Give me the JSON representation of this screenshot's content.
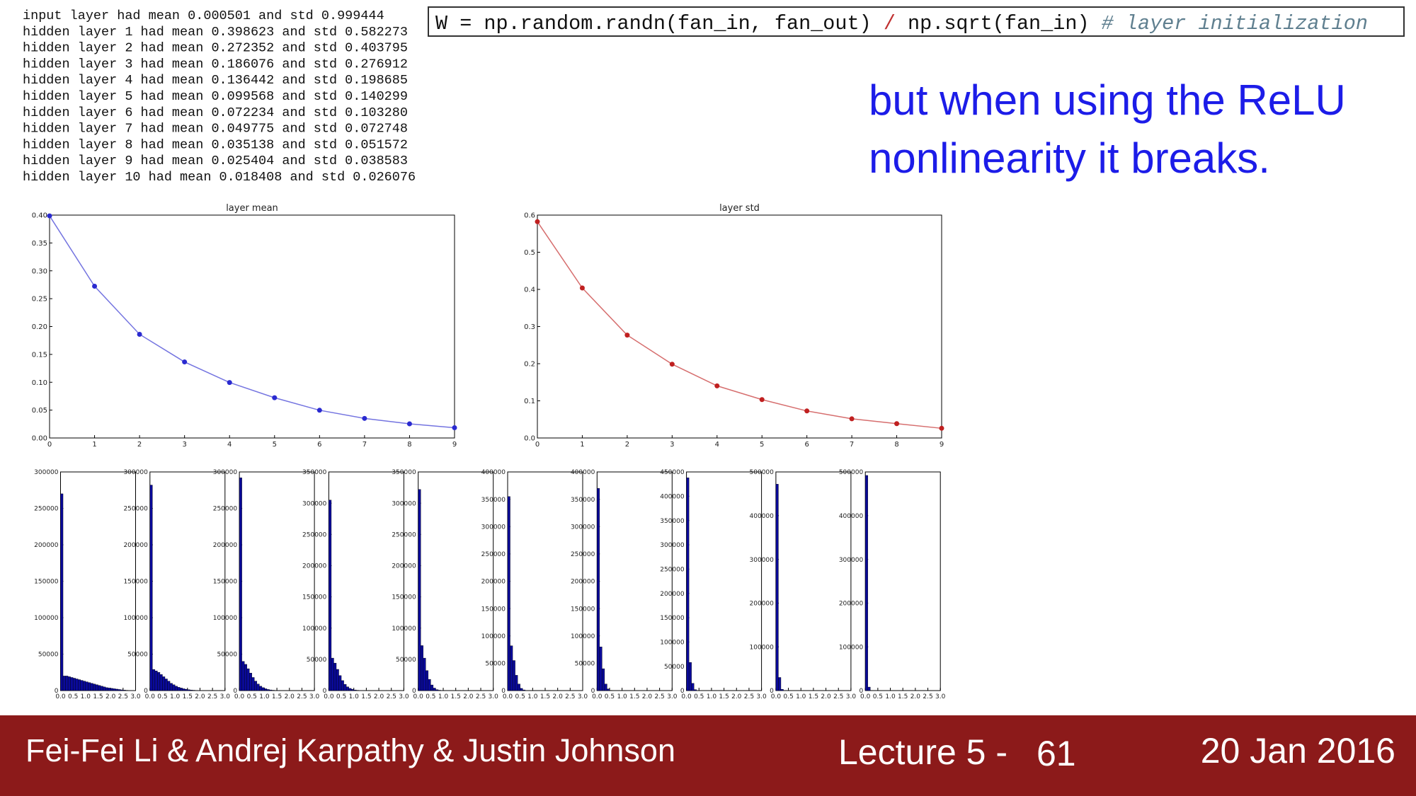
{
  "console": [
    "input layer had mean 0.000501 and std 0.999444",
    "hidden layer 1 had mean 0.398623 and std 0.582273",
    "hidden layer 2 had mean 0.272352 and std 0.403795",
    "hidden layer 3 had mean 0.186076 and std 0.276912",
    "hidden layer 4 had mean 0.136442 and std 0.198685",
    "hidden layer 5 had mean 0.099568 and std 0.140299",
    "hidden layer 6 had mean 0.072234 and std 0.103280",
    "hidden layer 7 had mean 0.049775 and std 0.072748",
    "hidden layer 8 had mean 0.035138 and std 0.051572",
    "hidden layer 9 had mean 0.025404 and std 0.038583",
    "hidden layer 10 had mean 0.018408 and std 0.026076"
  ],
  "code": [
    "W = np.random.randn(fan_in, fan_out) ",
    "/",
    " np.sqrt(fan_in) ",
    "# layer initialization"
  ],
  "caption": [
    "but when using the ReLU",
    "nonlinearity it breaks."
  ],
  "footer": {
    "authors": "Fei-Fei Li & Andrej Karpathy & Justin Johnson",
    "lecture": "Lecture 5 -",
    "page": "61",
    "date": "20 Jan 2016"
  },
  "chart_data": [
    {
      "type": "line",
      "title": "layer mean",
      "x": [
        0,
        1,
        2,
        3,
        4,
        5,
        6,
        7,
        8,
        9
      ],
      "series": [
        {
          "color": "#2a2ad0",
          "values": [
            0.398623,
            0.272352,
            0.186076,
            0.136442,
            0.099568,
            0.072234,
            0.049775,
            0.035138,
            0.025404,
            0.018408
          ]
        }
      ],
      "xlim": [
        0,
        9
      ],
      "xticks": [
        0,
        1,
        2,
        3,
        4,
        5,
        6,
        7,
        8,
        9
      ],
      "ylim": [
        0,
        0.4
      ],
      "yticks": [
        {
          "value": 0,
          "label": "0.00"
        },
        0.05,
        {
          "value": 0.1,
          "label": "0.10"
        },
        0.15,
        {
          "value": 0.2,
          "label": "0.20"
        },
        0.25,
        {
          "value": 0.3,
          "label": "0.30"
        },
        0.35,
        {
          "value": 0.4,
          "label": "0.40"
        }
      ]
    },
    {
      "type": "line",
      "title": "layer std",
      "x": [
        0,
        1,
        2,
        3,
        4,
        5,
        6,
        7,
        8,
        9
      ],
      "series": [
        {
          "color": "#c02020",
          "values": [
            0.582273,
            0.403795,
            0.276912,
            0.198685,
            0.140299,
            0.10328,
            0.072748,
            0.051572,
            0.038583,
            0.026076
          ]
        }
      ],
      "xlim": [
        0,
        9
      ],
      "xticks": [
        0,
        1,
        2,
        3,
        4,
        5,
        6,
        7,
        8,
        9
      ],
      "ylim": [
        0,
        0.6
      ],
      "yticks": [
        {
          "value": 0,
          "label": "0.0"
        },
        0.1,
        0.2,
        0.3,
        0.4,
        0.5,
        0.6
      ]
    },
    {
      "type": "histogram",
      "color": "#0a0a9a",
      "bins": [
        0,
        0.1,
        0.2,
        0.3,
        0.4,
        0.5,
        0.6,
        0.7,
        0.8,
        0.9,
        1,
        1.1,
        1.2,
        1.3,
        1.4,
        1.5,
        1.6,
        1.7,
        1.8,
        1.9,
        2,
        2.1,
        2.2,
        2.3,
        2.4,
        2.5,
        2.6,
        2.7,
        2.8,
        2.9,
        3
      ],
      "values": [
        270000,
        20000,
        20000,
        19000,
        18000,
        17000,
        16000,
        15000,
        14000,
        13000,
        12000,
        11000,
        10000,
        9000,
        8000,
        7000,
        6000,
        5000,
        4000,
        3500,
        3000,
        2500,
        2000,
        1500,
        1000,
        700,
        400,
        200,
        100,
        0
      ],
      "xlim": [
        0,
        3
      ],
      "xticks": [
        {
          "value": 0,
          "label": "0.0"
        },
        0.5,
        {
          "value": 1,
          "label": "1.0"
        },
        1.5,
        {
          "value": 2,
          "label": "2.0"
        },
        2.5,
        {
          "value": 3,
          "label": "3.0"
        }
      ],
      "ylim": [
        0,
        300000
      ],
      "yticks": [
        0,
        50000,
        100000,
        150000,
        200000,
        250000,
        300000
      ]
    },
    {
      "type": "histogram",
      "color": "#0a0a9a",
      "bins": [
        0,
        0.1,
        0.2,
        0.3,
        0.4,
        0.5,
        0.6,
        0.7,
        0.8,
        0.9,
        1,
        1.1,
        1.2,
        1.3,
        1.4,
        1.5,
        1.6,
        1.7,
        1.8,
        1.9,
        2,
        2.1,
        2.2,
        2.3,
        2.4,
        2.5,
        2.6,
        2.7,
        2.8,
        2.9,
        3
      ],
      "values": [
        282000,
        29000,
        27000,
        25000,
        22000,
        19000,
        16000,
        13000,
        10000,
        8000,
        6000,
        4500,
        3500,
        2500,
        1800,
        1200,
        800,
        500,
        300,
        150,
        80,
        0,
        0,
        0,
        0,
        0,
        0,
        0,
        0,
        0
      ],
      "xlim": [
        0,
        3
      ],
      "xticks": [
        {
          "value": 0,
          "label": "0.0"
        },
        0.5,
        {
          "value": 1,
          "label": "1.0"
        },
        1.5,
        {
          "value": 2,
          "label": "2.0"
        },
        2.5,
        {
          "value": 3,
          "label": "3.0"
        }
      ],
      "ylim": [
        0,
        300000
      ],
      "yticks": [
        0,
        50000,
        100000,
        150000,
        200000,
        250000,
        300000
      ]
    },
    {
      "type": "histogram",
      "color": "#0a0a9a",
      "bins": [
        0,
        0.1,
        0.2,
        0.3,
        0.4,
        0.5,
        0.6,
        0.7,
        0.8,
        0.9,
        1,
        1.1,
        1.2,
        1.3,
        1.4,
        1.5,
        1.6,
        1.7,
        1.8,
        1.9,
        2,
        2.1,
        2.2,
        2.3,
        2.4,
        2.5,
        2.6,
        2.7,
        2.8,
        2.9,
        3
      ],
      "values": [
        292000,
        40000,
        36000,
        30000,
        24000,
        18000,
        13000,
        9000,
        6000,
        4000,
        2500,
        1500,
        900,
        500,
        250,
        100,
        0,
        0,
        0,
        0,
        0,
        0,
        0,
        0,
        0,
        0,
        0,
        0,
        0,
        0
      ],
      "xlim": [
        0,
        3
      ],
      "xticks": [
        {
          "value": 0,
          "label": "0.0"
        },
        0.5,
        {
          "value": 1,
          "label": "1.0"
        },
        1.5,
        {
          "value": 2,
          "label": "2.0"
        },
        2.5,
        {
          "value": 3,
          "label": "3.0"
        }
      ],
      "ylim": [
        0,
        300000
      ],
      "yticks": [
        0,
        50000,
        100000,
        150000,
        200000,
        250000,
        300000
      ]
    },
    {
      "type": "histogram",
      "color": "#0a0a9a",
      "bins": [
        0,
        0.1,
        0.2,
        0.3,
        0.4,
        0.5,
        0.6,
        0.7,
        0.8,
        0.9,
        1,
        1.1,
        1.2,
        1.3,
        1.4,
        1.5,
        1.6,
        1.7,
        1.8,
        1.9,
        2,
        2.1,
        2.2,
        2.3,
        2.4,
        2.5,
        2.6,
        2.7,
        2.8,
        2.9,
        3
      ],
      "values": [
        305000,
        52000,
        44000,
        34000,
        24000,
        16000,
        10000,
        6000,
        3500,
        2000,
        1000,
        500,
        200,
        100,
        0,
        0,
        0,
        0,
        0,
        0,
        0,
        0,
        0,
        0,
        0,
        0,
        0,
        0,
        0,
        0
      ],
      "xlim": [
        0,
        3
      ],
      "xticks": [
        {
          "value": 0,
          "label": "0.0"
        },
        0.5,
        {
          "value": 1,
          "label": "1.0"
        },
        1.5,
        {
          "value": 2,
          "label": "2.0"
        },
        2.5,
        {
          "value": 3,
          "label": "3.0"
        }
      ],
      "ylim": [
        0,
        350000
      ],
      "yticks": [
        0,
        50000,
        100000,
        150000,
        200000,
        250000,
        300000,
        350000
      ]
    },
    {
      "type": "histogram",
      "color": "#0a0a9a",
      "bins": [
        0,
        0.1,
        0.2,
        0.3,
        0.4,
        0.5,
        0.6,
        0.7,
        0.8,
        0.9,
        1,
        1.1,
        1.2,
        1.3,
        1.4,
        1.5,
        1.6,
        1.7,
        1.8,
        1.9,
        2,
        2.1,
        2.2,
        2.3,
        2.4,
        2.5,
        2.6,
        2.7,
        2.8,
        2.9,
        3
      ],
      "values": [
        322000,
        72000,
        52000,
        32000,
        18000,
        9000,
        4000,
        1500,
        600,
        200,
        0,
        0,
        0,
        0,
        0,
        0,
        0,
        0,
        0,
        0,
        0,
        0,
        0,
        0,
        0,
        0,
        0,
        0,
        0,
        0
      ],
      "xlim": [
        0,
        3
      ],
      "xticks": [
        {
          "value": 0,
          "label": "0.0"
        },
        0.5,
        {
          "value": 1,
          "label": "1.0"
        },
        1.5,
        {
          "value": 2,
          "label": "2.0"
        },
        2.5,
        {
          "value": 3,
          "label": "3.0"
        }
      ],
      "ylim": [
        0,
        350000
      ],
      "yticks": [
        0,
        50000,
        100000,
        150000,
        200000,
        250000,
        300000,
        350000
      ]
    },
    {
      "type": "histogram",
      "color": "#0a0a9a",
      "bins": [
        0,
        0.1,
        0.2,
        0.3,
        0.4,
        0.5,
        0.6,
        0.7,
        0.8,
        0.9,
        1,
        1.1,
        1.2,
        1.3,
        1.4,
        1.5,
        1.6,
        1.7,
        1.8,
        1.9,
        2,
        2.1,
        2.2,
        2.3,
        2.4,
        2.5,
        2.6,
        2.7,
        2.8,
        2.9,
        3
      ],
      "values": [
        355000,
        82000,
        55000,
        28000,
        12000,
        4000,
        1200,
        300,
        0,
        0,
        0,
        0,
        0,
        0,
        0,
        0,
        0,
        0,
        0,
        0,
        0,
        0,
        0,
        0,
        0,
        0,
        0,
        0,
        0,
        0
      ],
      "xlim": [
        0,
        3
      ],
      "xticks": [
        {
          "value": 0,
          "label": "0.0"
        },
        0.5,
        {
          "value": 1,
          "label": "1.0"
        },
        1.5,
        {
          "value": 2,
          "label": "2.0"
        },
        2.5,
        {
          "value": 3,
          "label": "3.0"
        }
      ],
      "ylim": [
        0,
        400000
      ],
      "yticks": [
        0,
        50000,
        100000,
        150000,
        200000,
        250000,
        300000,
        350000,
        400000
      ]
    },
    {
      "type": "histogram",
      "color": "#0a0a9a",
      "bins": [
        0,
        0.1,
        0.2,
        0.3,
        0.4,
        0.5,
        0.6,
        0.7,
        0.8,
        0.9,
        1,
        1.1,
        1.2,
        1.3,
        1.4,
        1.5,
        1.6,
        1.7,
        1.8,
        1.9,
        2,
        2.1,
        2.2,
        2.3,
        2.4,
        2.5,
        2.6,
        2.7,
        2.8,
        2.9,
        3
      ],
      "values": [
        370000,
        80000,
        40000,
        12000,
        3000,
        500,
        0,
        0,
        0,
        0,
        0,
        0,
        0,
        0,
        0,
        0,
        0,
        0,
        0,
        0,
        0,
        0,
        0,
        0,
        0,
        0,
        0,
        0,
        0,
        0
      ],
      "xlim": [
        0,
        3
      ],
      "xticks": [
        {
          "value": 0,
          "label": "0.0"
        },
        0.5,
        {
          "value": 1,
          "label": "1.0"
        },
        1.5,
        {
          "value": 2,
          "label": "2.0"
        },
        2.5,
        {
          "value": 3,
          "label": "3.0"
        }
      ],
      "ylim": [
        0,
        400000
      ],
      "yticks": [
        0,
        50000,
        100000,
        150000,
        200000,
        250000,
        300000,
        350000,
        400000
      ]
    },
    {
      "type": "histogram",
      "color": "#0a0a9a",
      "bins": [
        0,
        0.1,
        0.2,
        0.3,
        0.4,
        0.5,
        0.6,
        0.7,
        0.8,
        0.9,
        1,
        1.1,
        1.2,
        1.3,
        1.4,
        1.5,
        1.6,
        1.7,
        1.8,
        1.9,
        2,
        2.1,
        2.2,
        2.3,
        2.4,
        2.5,
        2.6,
        2.7,
        2.8,
        2.9,
        3
      ],
      "values": [
        438000,
        58000,
        15000,
        2000,
        200,
        0,
        0,
        0,
        0,
        0,
        0,
        0,
        0,
        0,
        0,
        0,
        0,
        0,
        0,
        0,
        0,
        0,
        0,
        0,
        0,
        0,
        0,
        0,
        0,
        0
      ],
      "xlim": [
        0,
        3
      ],
      "xticks": [
        {
          "value": 0,
          "label": "0.0"
        },
        0.5,
        {
          "value": 1,
          "label": "1.0"
        },
        1.5,
        {
          "value": 2,
          "label": "2.0"
        },
        2.5,
        {
          "value": 3,
          "label": "3.0"
        }
      ],
      "ylim": [
        0,
        450000
      ],
      "yticks": [
        0,
        50000,
        100000,
        150000,
        200000,
        250000,
        300000,
        350000,
        400000,
        450000
      ]
    },
    {
      "type": "histogram",
      "color": "#0a0a9a",
      "bins": [
        0,
        0.1,
        0.2,
        0.3,
        0.4,
        0.5,
        0.6,
        0.7,
        0.8,
        0.9,
        1,
        1.1,
        1.2,
        1.3,
        1.4,
        1.5,
        1.6,
        1.7,
        1.8,
        1.9,
        2,
        2.1,
        2.2,
        2.3,
        2.4,
        2.5,
        2.6,
        2.7,
        2.8,
        2.9,
        3
      ],
      "values": [
        472000,
        30000,
        3000,
        200,
        0,
        0,
        0,
        0,
        0,
        0,
        0,
        0,
        0,
        0,
        0,
        0,
        0,
        0,
        0,
        0,
        0,
        0,
        0,
        0,
        0,
        0,
        0,
        0,
        0,
        0
      ],
      "xlim": [
        0,
        3
      ],
      "xticks": [
        {
          "value": 0,
          "label": "0.0"
        },
        0.5,
        {
          "value": 1,
          "label": "1.0"
        },
        1.5,
        {
          "value": 2,
          "label": "2.0"
        },
        2.5,
        {
          "value": 3,
          "label": "3.0"
        }
      ],
      "ylim": [
        0,
        500000
      ],
      "yticks": [
        0,
        100000,
        200000,
        300000,
        400000,
        500000
      ]
    },
    {
      "type": "histogram",
      "color": "#0a0a9a",
      "bins": [
        0,
        0.1,
        0.2,
        0.3,
        0.4,
        0.5,
        0.6,
        0.7,
        0.8,
        0.9,
        1,
        1.1,
        1.2,
        1.3,
        1.4,
        1.5,
        1.6,
        1.7,
        1.8,
        1.9,
        2,
        2.1,
        2.2,
        2.3,
        2.4,
        2.5,
        2.6,
        2.7,
        2.8,
        2.9,
        3
      ],
      "values": [
        492000,
        8000,
        500,
        0,
        0,
        0,
        0,
        0,
        0,
        0,
        0,
        0,
        0,
        0,
        0,
        0,
        0,
        0,
        0,
        0,
        0,
        0,
        0,
        0,
        0,
        0,
        0,
        0,
        0,
        0
      ],
      "xlim": [
        0,
        3
      ],
      "xticks": [
        {
          "value": 0,
          "label": "0.0"
        },
        0.5,
        {
          "value": 1,
          "label": "1.0"
        },
        1.5,
        {
          "value": 2,
          "label": "2.0"
        },
        2.5,
        {
          "value": 3,
          "label": "3.0"
        }
      ],
      "ylim": [
        0,
        500000
      ],
      "yticks": [
        0,
        100000,
        200000,
        300000,
        400000,
        500000
      ]
    }
  ]
}
